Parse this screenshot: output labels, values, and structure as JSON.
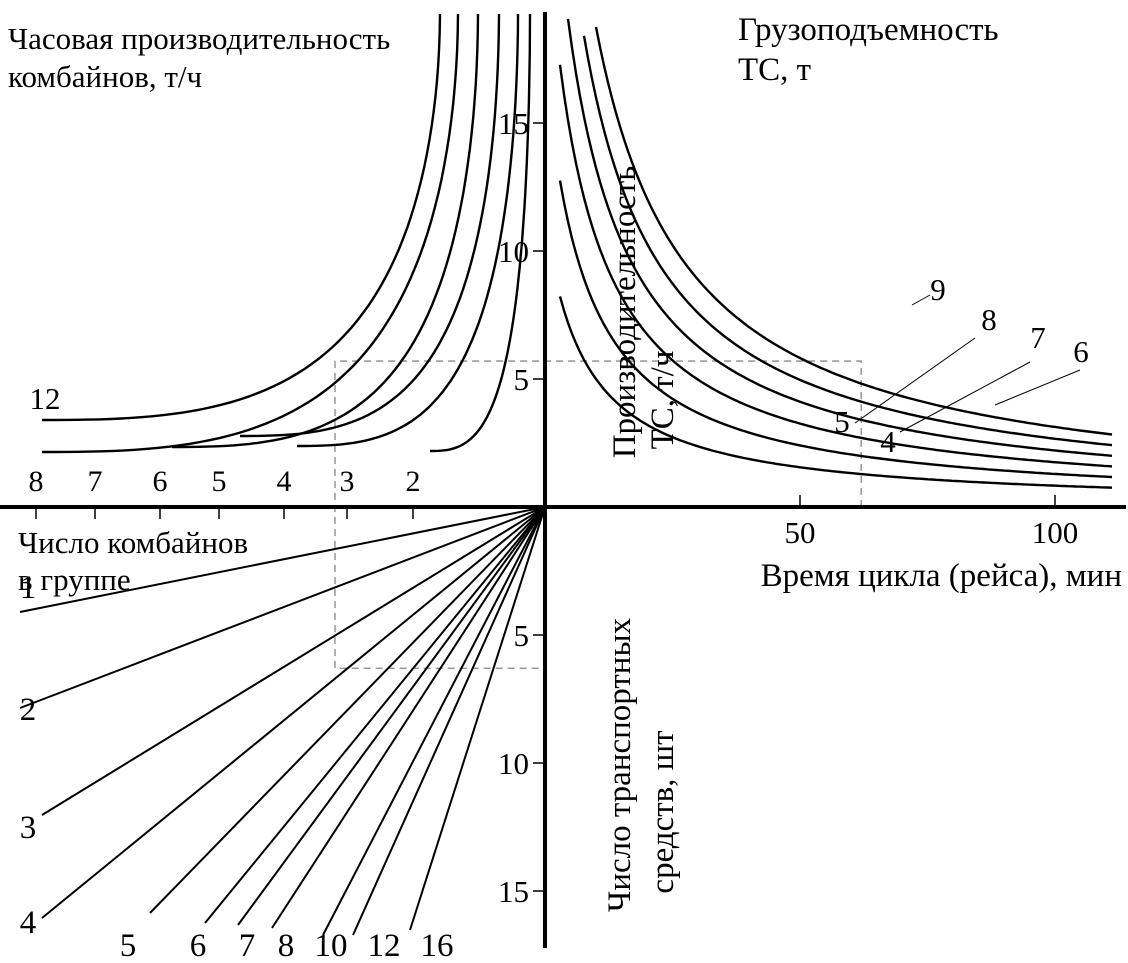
{
  "chart_data": {
    "type": "line",
    "chart_kind": "nomogram",
    "colors": {
      "lines": "#000000",
      "guide": "#888888",
      "background": "#ffffff"
    },
    "quadrants": {
      "top_right": {
        "label_group": {
          "line1": "Грузоподъемность",
          "line2": "ТС, т"
        },
        "xlabel": "Время цикла (рейса), мин",
        "ylabel_line1": "Производительность",
        "ylabel_line2": "ТС, т/ч",
        "x_ticks": [
          "50",
          "100"
        ],
        "y_ticks": [
          "5",
          "10",
          "15"
        ],
        "series": [
          {
            "name": "4",
            "values": [
              4,
              2.0
            ]
          },
          {
            "name": "5",
            "values": [
              5,
              2.5
            ]
          },
          {
            "name": "6",
            "values": [
              6,
              3.0
            ]
          },
          {
            "name": "7",
            "values": [
              7,
              3.5
            ]
          },
          {
            "name": "8",
            "values": [
              8,
              4.0
            ]
          },
          {
            "name": "9",
            "values": [
              9,
              4.5
            ]
          }
        ]
      },
      "top_left": {
        "label_group": {
          "line1": "Часовая производительность",
          "line2": "комбайнов, т/ч"
        },
        "x_ticks": [
          "8",
          "7",
          "6",
          "5",
          "4",
          "3",
          "2"
        ],
        "series": [
          {
            "name": "12"
          },
          {
            "name": ""
          },
          {
            "name": ""
          },
          {
            "name": ""
          },
          {
            "name": ""
          },
          {
            "name": ""
          }
        ]
      },
      "bottom_left": {
        "label_group": {
          "line1": "Число комбайнов",
          "line2": "в группе"
        },
        "series": [
          {
            "name": "1"
          },
          {
            "name": "2"
          },
          {
            "name": "3"
          },
          {
            "name": "4"
          },
          {
            "name": "5"
          },
          {
            "name": "6"
          },
          {
            "name": "7"
          },
          {
            "name": "8"
          },
          {
            "name": "10"
          },
          {
            "name": "12"
          },
          {
            "name": "16"
          }
        ]
      },
      "bottom_right": {
        "ylabel_line1": "Число транспортных",
        "ylabel_line2": "средств, шт",
        "y_ticks": [
          "5",
          "10",
          "15"
        ]
      }
    },
    "example_path": {
      "cycle_time_min": 62,
      "productivity_t_h": 5.7,
      "vehicles": 6.3
    }
  }
}
